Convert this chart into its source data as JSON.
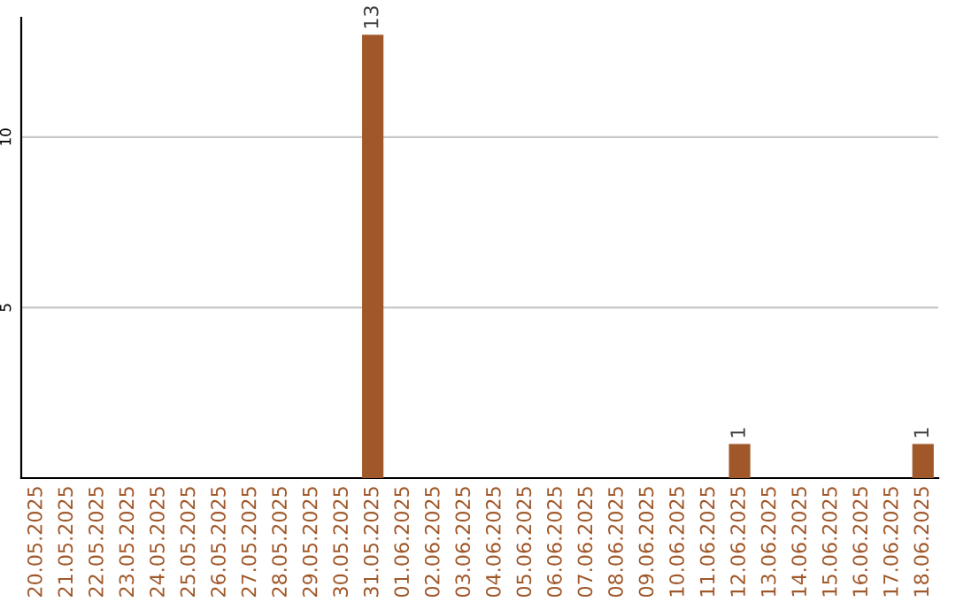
{
  "chart_data": {
    "type": "bar",
    "categories": [
      "20.05.2025",
      "21.05.2025",
      "22.05.2025",
      "23.05.2025",
      "24.05.2025",
      "25.05.2025",
      "26.05.2025",
      "27.05.2025",
      "28.05.2025",
      "29.05.2025",
      "30.05.2025",
      "31.05.2025",
      "01.06.2025",
      "02.06.2025",
      "03.06.2025",
      "04.06.2025",
      "05.06.2025",
      "06.06.2025",
      "07.06.2025",
      "08.06.2025",
      "09.06.2025",
      "10.06.2025",
      "11.06.2025",
      "12.06.2025",
      "13.06.2025",
      "14.06.2025",
      "15.06.2025",
      "16.06.2025",
      "17.06.2025",
      "18.06.2025"
    ],
    "values": [
      0,
      0,
      0,
      0,
      0,
      0,
      0,
      0,
      0,
      0,
      0,
      13,
      0,
      0,
      0,
      0,
      0,
      0,
      0,
      0,
      0,
      0,
      0,
      1,
      0,
      0,
      0,
      0,
      0,
      1
    ],
    "value_labels": [
      null,
      null,
      null,
      null,
      null,
      null,
      null,
      null,
      null,
      null,
      null,
      "13",
      null,
      null,
      null,
      null,
      null,
      null,
      null,
      null,
      null,
      null,
      null,
      "1",
      null,
      null,
      null,
      null,
      null,
      "1"
    ],
    "color": "#a0582a",
    "ylim": [
      0,
      13.5
    ],
    "yticks": [
      5,
      10
    ],
    "grid": "y"
  }
}
